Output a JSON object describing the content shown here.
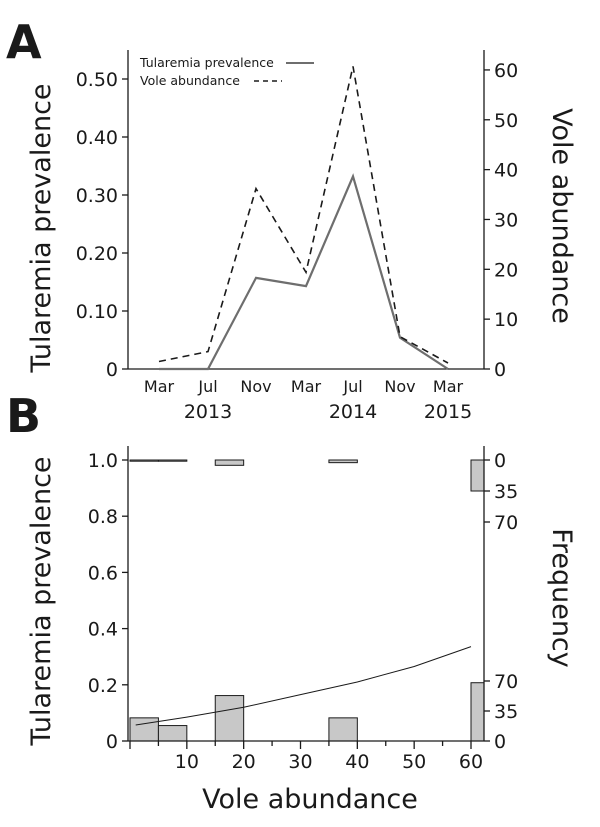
{
  "panels": [
    {
      "letter": "A"
    },
    {
      "letter": "B"
    }
  ],
  "chart_data": [
    {
      "type": "line",
      "x_ticks": [
        "Mar",
        "Jul",
        "Nov",
        "Mar",
        "Jul",
        "Nov",
        "Mar"
      ],
      "x_year_labels": [
        {
          "label": "2013",
          "at_tick": 1
        },
        {
          "label": "2014",
          "at_tick": 4
        },
        {
          "label": "2015",
          "at_tick": 6
        }
      ],
      "x": [
        "2013-03",
        "2013-07",
        "2013-11",
        "2014-03",
        "2014-07",
        "2014-11",
        "2015-03"
      ],
      "series": [
        {
          "name": "Tularemia prevalence",
          "axis": "left",
          "color": "#6e6e6e",
          "dash": "solid",
          "values": [
            0,
            0,
            0.157,
            0.143,
            0.332,
            0.054,
            0
          ]
        },
        {
          "name": "Vole abundance",
          "axis": "right",
          "color": "#1a1a1a",
          "dash": "dashed",
          "values": [
            1.5,
            3.5,
            36.2,
            19.4,
            60.7,
            6.5,
            1.2
          ]
        }
      ],
      "ylabel": "Tularemia prevalence",
      "ylabel_right": "Vole abundance",
      "yticks": [
        "0",
        "0.10",
        "0.20",
        "0.30",
        "0.40",
        "0.50"
      ],
      "ylim": [
        0,
        0.55
      ],
      "yticks_right": [
        "0",
        "10",
        "20",
        "30",
        "40",
        "50",
        "60"
      ],
      "ylim_right": [
        0,
        64
      ],
      "legend": [
        "Tularemia prevalence",
        "Vole abundance"
      ],
      "legend_position": "top-left",
      "grid": false
    },
    {
      "type": "scatter",
      "xlabel": "Vole abundance",
      "ylabel": "Tularemia prevalence",
      "ylabel_right": "Frequency",
      "xticks": [
        "10",
        "20",
        "30",
        "40",
        "50",
        "60"
      ],
      "xlim": [
        -2,
        63
      ],
      "yticks": [
        "0",
        "0.2",
        "0.4",
        "0.6",
        "0.8",
        "1.0"
      ],
      "ylim": [
        0,
        1.05
      ],
      "freq_bottom_ticks": [
        "0",
        "35",
        "70"
      ],
      "freq_top_ticks": [
        "0",
        "35",
        "70"
      ],
      "bins": [
        {
          "x0": 0,
          "x1": 5,
          "freq_negative": 0,
          "freq_positive": 27
        },
        {
          "x0": 5,
          "x1": 10,
          "freq_negative": 1,
          "freq_positive": 18
        },
        {
          "x0": 15,
          "x1": 20,
          "freq_negative": 6,
          "freq_positive": 53
        },
        {
          "x0": 35,
          "x1": 40,
          "freq_negative": 3,
          "freq_positive": 27
        },
        {
          "x0": 60,
          "x1": 63,
          "freq_negative": 35,
          "freq_positive": 68
        }
      ],
      "fitted_curve": {
        "model": "logistic",
        "x": [
          1,
          10,
          20,
          30,
          40,
          50,
          60
        ],
        "y": [
          0.057,
          0.085,
          0.12,
          0.165,
          0.21,
          0.265,
          0.336
        ]
      },
      "grid": false
    }
  ]
}
